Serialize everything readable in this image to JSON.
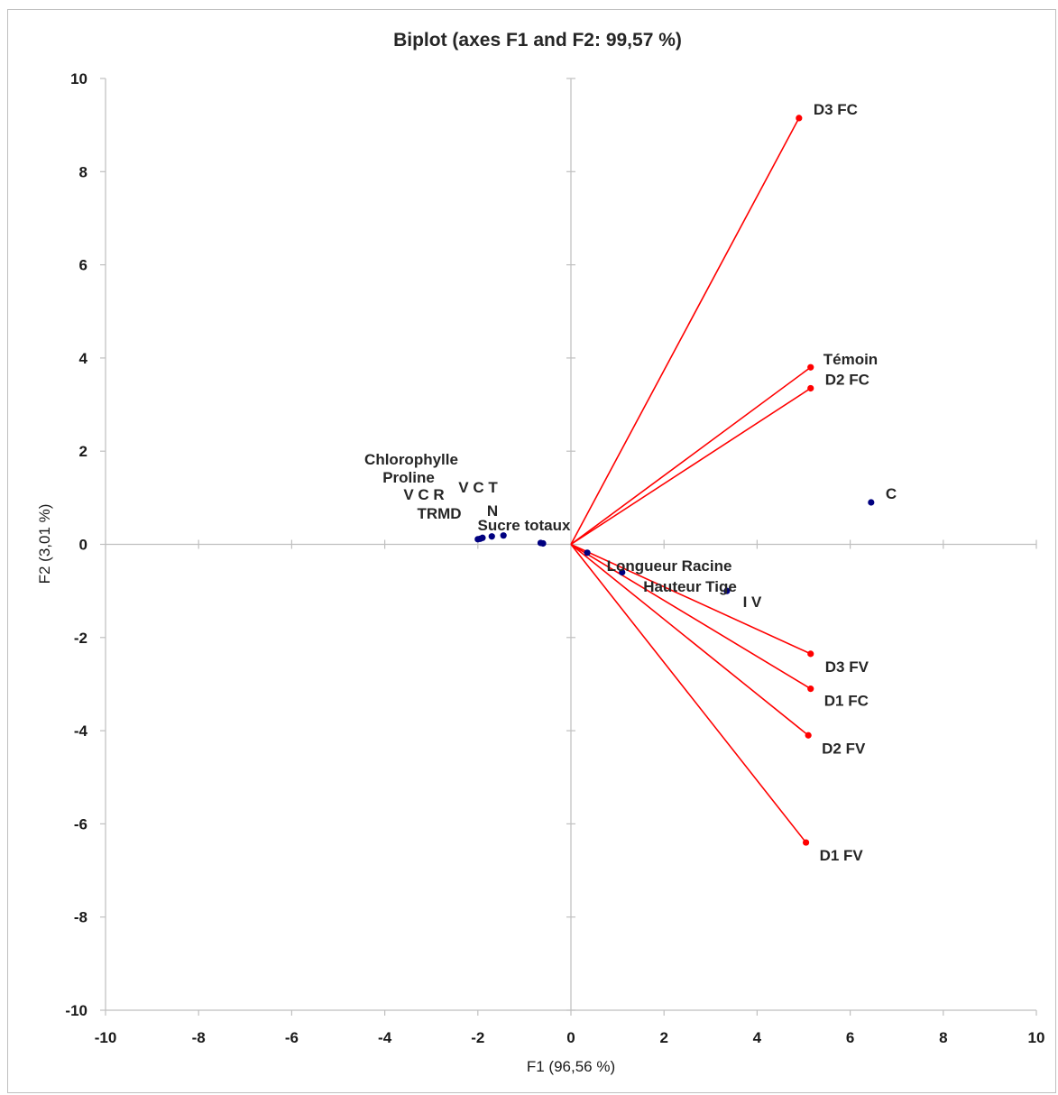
{
  "chart_data": {
    "type": "scatter",
    "title": "Biplot (axes F1 and F2: 99,57 %)",
    "xlabel": "F1 (96,56 %)",
    "ylabel": "F2 (3,01 %)",
    "xlim": [
      -10,
      10
    ],
    "ylim": [
      -10,
      10
    ],
    "xticks": [
      -10,
      -8,
      -6,
      -4,
      -2,
      0,
      2,
      4,
      6,
      8,
      10
    ],
    "yticks": [
      -10,
      -8,
      -6,
      -4,
      -2,
      0,
      2,
      4,
      6,
      8,
      10
    ],
    "grid": false,
    "colors": {
      "vectors": "#ff0000",
      "observations": "#000080",
      "axes": "#bfbfbf"
    },
    "observations": [
      {
        "label": "Chlorophylle",
        "x": -1.9,
        "y": 0.14
      },
      {
        "label": "Proline",
        "x": -1.95,
        "y": 0.12
      },
      {
        "label": "V C R",
        "x": -1.7,
        "y": 0.17
      },
      {
        "label": "V C T",
        "x": -1.45,
        "y": 0.19
      },
      {
        "label": "TRMD",
        "x": -2.0,
        "y": 0.11
      },
      {
        "label": "N",
        "x": -0.65,
        "y": 0.03
      },
      {
        "label": "Sucre totaux",
        "x": -0.6,
        "y": 0.02
      },
      {
        "label": "Longueur Racine",
        "x": 0.35,
        "y": -0.18
      },
      {
        "label": "Hauteur Tige",
        "x": 1.1,
        "y": -0.6
      },
      {
        "label": "I V",
        "x": 3.35,
        "y": -1.0
      },
      {
        "label": "C",
        "x": 6.45,
        "y": 0.9
      }
    ],
    "vectors": [
      {
        "label": "D3 FC",
        "x": 4.9,
        "y": 9.15
      },
      {
        "label": "Témoin",
        "x": 5.15,
        "y": 3.8
      },
      {
        "label": "D2 FC",
        "x": 5.15,
        "y": 3.35
      },
      {
        "label": "D3 FV",
        "x": 5.15,
        "y": -2.35
      },
      {
        "label": "D1 FC",
        "x": 5.15,
        "y": -3.1
      },
      {
        "label": "D2 FV",
        "x": 5.1,
        "y": -4.1
      },
      {
        "label": "D1 FV",
        "x": 5.05,
        "y": -6.4
      }
    ]
  }
}
